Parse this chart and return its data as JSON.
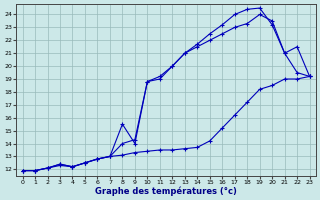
{
  "xlabel": "Graphe des températures (°c)",
  "background_color": "#cce8e8",
  "grid_color": "#99bbbb",
  "line_color": "#0000bb",
  "xlim": [
    -0.5,
    23.5
  ],
  "ylim": [
    11.5,
    24.8
  ],
  "xticks": [
    0,
    1,
    2,
    3,
    4,
    5,
    6,
    7,
    8,
    9,
    10,
    11,
    12,
    13,
    14,
    15,
    16,
    17,
    18,
    19,
    20,
    21,
    22,
    23
  ],
  "yticks": [
    12,
    13,
    14,
    15,
    16,
    17,
    18,
    19,
    20,
    21,
    22,
    23,
    24
  ],
  "line1_x": [
    0,
    1,
    2,
    3,
    4,
    5,
    6,
    7,
    8,
    9,
    10,
    11,
    12,
    13,
    14,
    15,
    16,
    17,
    18,
    19,
    20,
    21,
    22,
    23
  ],
  "line1_y": [
    11.9,
    11.9,
    12.1,
    12.3,
    12.2,
    12.5,
    12.8,
    13.0,
    13.1,
    13.3,
    13.4,
    13.5,
    13.5,
    13.6,
    13.7,
    14.2,
    15.2,
    16.2,
    17.2,
    18.2,
    18.5,
    19.0,
    19.0,
    19.2
  ],
  "line2_x": [
    0,
    1,
    2,
    3,
    4,
    5,
    6,
    7,
    8,
    9,
    10,
    11,
    12,
    13,
    14,
    15,
    16,
    17,
    18,
    19,
    20,
    21,
    22,
    23
  ],
  "line2_y": [
    11.9,
    11.9,
    12.1,
    12.4,
    12.2,
    12.5,
    12.8,
    13.0,
    15.5,
    14.0,
    18.8,
    19.2,
    20.0,
    21.0,
    21.5,
    22.0,
    22.5,
    23.0,
    23.3,
    24.0,
    23.5,
    21.0,
    21.5,
    19.2
  ],
  "line3_x": [
    0,
    1,
    2,
    3,
    4,
    5,
    6,
    7,
    8,
    9,
    10,
    11,
    12,
    13,
    14,
    15,
    16,
    17,
    18,
    19,
    20,
    21,
    22,
    23
  ],
  "line3_y": [
    11.9,
    11.9,
    12.1,
    12.4,
    12.2,
    12.5,
    12.8,
    13.0,
    14.0,
    14.3,
    18.8,
    19.0,
    20.0,
    21.0,
    21.7,
    22.5,
    23.2,
    24.0,
    24.4,
    24.5,
    23.2,
    21.0,
    19.5,
    19.2
  ]
}
